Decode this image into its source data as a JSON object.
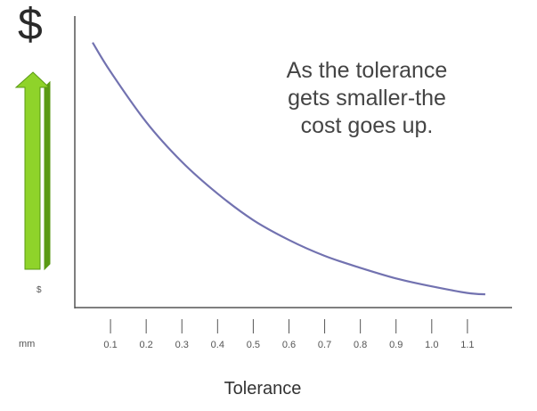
{
  "chart_data": {
    "type": "line",
    "title": "",
    "xlabel": "Tolerance",
    "ylabel": "$",
    "y_top_symbol": "$",
    "x_unit": "mm",
    "categories": [
      "0.1",
      "0.2",
      "0.3",
      "0.4",
      "0.5",
      "0.6",
      "0.7",
      "0.8",
      "0.9",
      "1.0",
      "1.1"
    ],
    "annotation": [
      "As the tolerance",
      "gets smaller-the",
      "cost goes up."
    ],
    "series": [
      {
        "values": [
          10.0,
          7.9,
          6.1,
          4.8,
          3.8,
          2.9,
          2.2,
          1.6,
          1.2,
          0.9,
          0.7
        ],
        "color": "#7272b0"
      }
    ],
    "curve_x": [
      0.05,
      0.1,
      0.2,
      0.3,
      0.4,
      0.5,
      0.6,
      0.7,
      0.8,
      0.9,
      1.0,
      1.1,
      1.15
    ],
    "curve_y": [
      10.0,
      8.9,
      7.0,
      5.5,
      4.3,
      3.3,
      2.55,
      1.95,
      1.5,
      1.1,
      0.8,
      0.55,
      0.5
    ],
    "xlim": [
      0.0,
      1.25
    ],
    "ylim": [
      0,
      11
    ],
    "grid": false,
    "axis_color": "#555555",
    "arrow_color": "#8fd32a",
    "arrow_edge_color": "#5a9a14"
  }
}
